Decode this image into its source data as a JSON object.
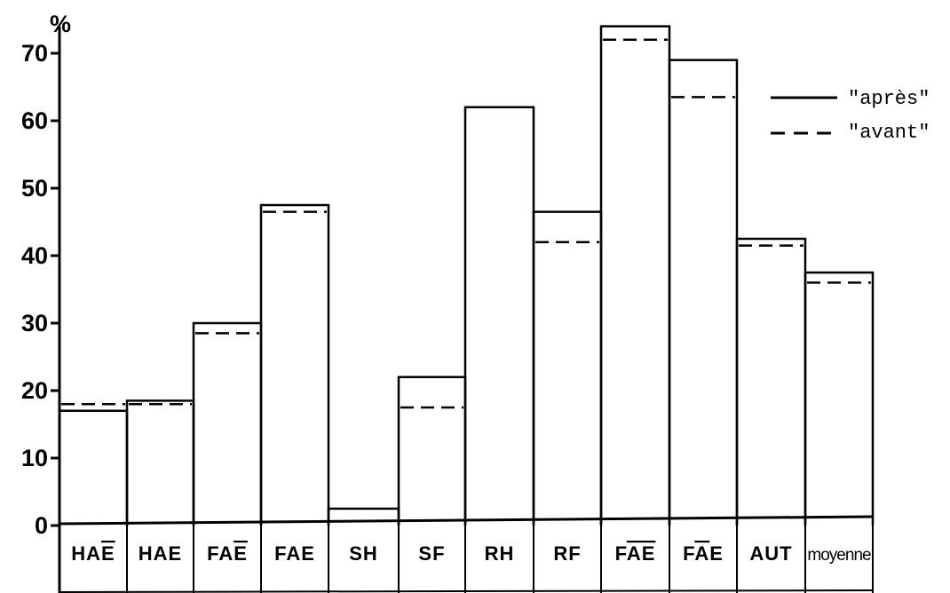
{
  "chart_data": {
    "type": "bar",
    "ylabel": "%",
    "ylim": [
      0,
      70
    ],
    "yticks": [
      0,
      10,
      20,
      30,
      40,
      50,
      60,
      70
    ],
    "categories": [
      {
        "label": "HAE",
        "overline": [
          2
        ]
      },
      {
        "label": "HAE",
        "overline": []
      },
      {
        "label": "FAE",
        "overline": [
          2
        ]
      },
      {
        "label": "FAE",
        "overline": []
      },
      {
        "label": "SH",
        "overline": []
      },
      {
        "label": "SF",
        "overline": []
      },
      {
        "label": "RH",
        "overline": []
      },
      {
        "label": "RF",
        "overline": []
      },
      {
        "label": "FAE",
        "overline": [
          1,
          2
        ]
      },
      {
        "label": "FAE",
        "overline": [
          1
        ]
      },
      {
        "label": "AUT",
        "overline": []
      },
      {
        "label": "moyenne",
        "overline": []
      }
    ],
    "series": [
      {
        "name": "\"après\"",
        "style": "solid",
        "values": [
          17,
          18.5,
          30,
          47.5,
          2.5,
          22,
          62,
          46.5,
          74,
          69,
          42.5,
          37.5
        ]
      },
      {
        "name": "\"avant\"",
        "style": "dashed",
        "values": [
          18,
          18,
          28.5,
          46.5,
          null,
          17.5,
          null,
          42,
          72,
          63.5,
          41.5,
          36
        ]
      }
    ],
    "legend_position": "top-right"
  }
}
